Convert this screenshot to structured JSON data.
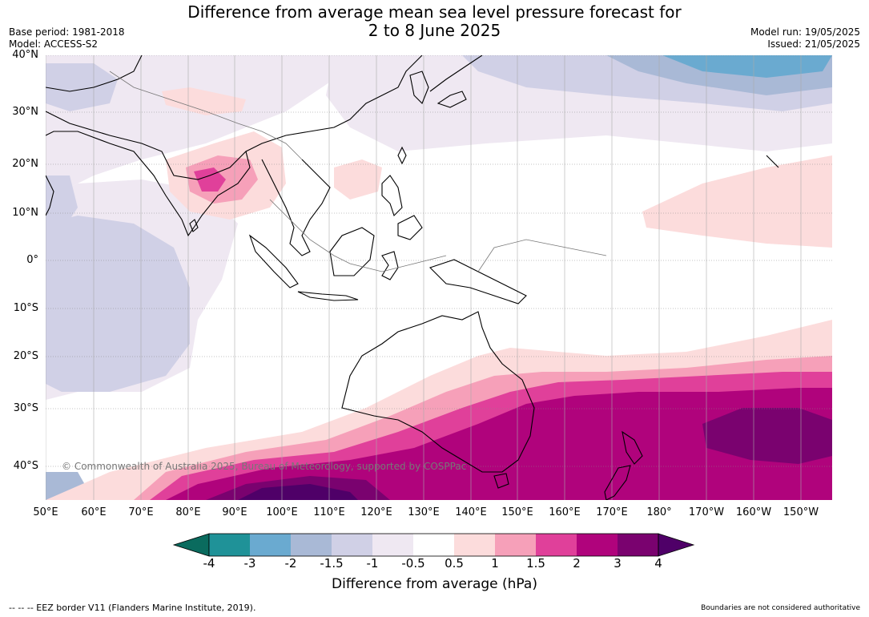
{
  "header": {
    "title_line1": "Difference from average mean sea level pressure forecast for",
    "title_line2": "2 to 8 June 2025",
    "base_period": "Base period: 1981-2018",
    "model": "Model: ACCESS-S2",
    "model_run": "Model run: 19/05/2025",
    "issued": "Issued: 21/05/2025"
  },
  "map": {
    "lat_labels": [
      "40°N",
      "30°N",
      "20°N",
      "10°N",
      "0°",
      "10°S",
      "20°S",
      "30°S",
      "40°S"
    ],
    "lon_labels": [
      "50°E",
      "60°E",
      "70°E",
      "80°E",
      "90°E",
      "100°E",
      "110°E",
      "120°E",
      "130°E",
      "140°E",
      "150°E",
      "160°E",
      "170°E",
      "180°",
      "170°W",
      "160°W",
      "150°W"
    ],
    "copyright": "© Commonwealth of Australia 2025, Bureau of Meteorology, supported by COSPPac",
    "icons": [
      "landmass-outline",
      "eez-border",
      "pressure-anomaly-contours"
    ]
  },
  "colorbar": {
    "title": "Difference from average (hPa)",
    "tick_labels": [
      "-4",
      "-3",
      "-2",
      "-1.5",
      "-1",
      "-0.5",
      "0.5",
      "1",
      "1.5",
      "2",
      "3",
      "4"
    ],
    "colors": [
      "#0a6b5e",
      "#1f9298",
      "#6aaad0",
      "#a9b9d6",
      "#d0d0e6",
      "#efe8f2",
      "#ffffff",
      "#fcdcdc",
      "#f6a0b9",
      "#e0409a",
      "#b0037c",
      "#7a026f",
      "#4f0068"
    ]
  },
  "footer": {
    "left": "--  --  -- EEZ border V11 (Flanders Marine Institute, 2019).",
    "right": "Boundaries are not considered authoritative"
  }
}
